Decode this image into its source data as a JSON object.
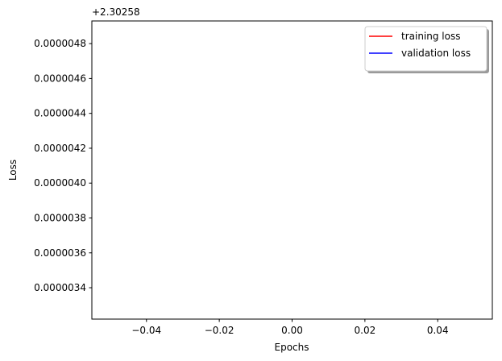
{
  "chart_data": {
    "type": "line",
    "title": "",
    "xlabel": "Epochs",
    "ylabel": "Loss",
    "y_offset_label": "+2.30258",
    "xlim": [
      -0.055,
      0.055
    ],
    "ylim": [
      3.22e-06,
      4.93e-06
    ],
    "xticks": [
      -0.04,
      -0.02,
      0.0,
      0.02,
      0.04
    ],
    "xtick_labels": [
      "−0.04",
      "−0.02",
      "0.00",
      "0.02",
      "0.04"
    ],
    "yticks": [
      3.4e-06,
      3.6e-06,
      3.8e-06,
      4e-06,
      4.2e-06,
      4.4e-06,
      4.6e-06,
      4.8e-06
    ],
    "ytick_labels": [
      "0.0000034",
      "0.0000036",
      "0.0000038",
      "0.0000040",
      "0.0000042",
      "0.0000044",
      "0.0000046",
      "0.0000048"
    ],
    "grid": false,
    "legend_position": "top-right",
    "series": [
      {
        "name": "training loss",
        "color": "#ff0000",
        "x": [],
        "y": []
      },
      {
        "name": "validation loss",
        "color": "#0000ff",
        "x": [],
        "y": []
      }
    ]
  }
}
